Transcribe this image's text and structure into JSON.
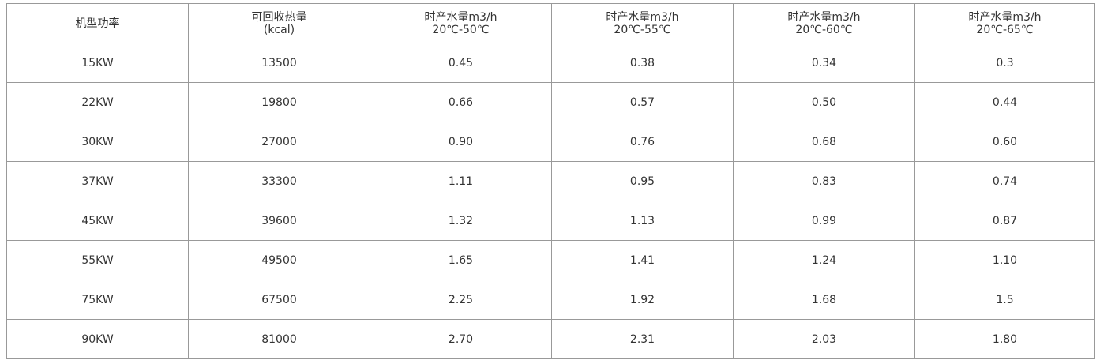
{
  "table": {
    "headers": [
      {
        "line1": "机型功率",
        "line2": ""
      },
      {
        "line1": "可回收热量",
        "line2": "(kcal)"
      },
      {
        "line1": "时产水量m3/h",
        "line2": "20℃-50℃"
      },
      {
        "line1": "时产水量m3/h",
        "line2": "20℃-55℃"
      },
      {
        "line1": "时产水量m3/h",
        "line2": "20℃-60℃"
      },
      {
        "line1": "时产水量m3/h",
        "line2": "20℃-65℃"
      }
    ],
    "rows": [
      [
        "15KW",
        "13500",
        "0.45",
        "0.38",
        "0.34",
        "0.3"
      ],
      [
        "22KW",
        "19800",
        "0.66",
        "0.57",
        "0.50",
        "0.44"
      ],
      [
        "30KW",
        "27000",
        "0.90",
        "0.76",
        "0.68",
        "0.60"
      ],
      [
        "37KW",
        "33300",
        "1.11",
        "0.95",
        "0.83",
        "0.74"
      ],
      [
        "45KW",
        "39600",
        "1.32",
        "1.13",
        "0.99",
        "0.87"
      ],
      [
        "55KW",
        "49500",
        "1.65",
        "1.41",
        "1.24",
        "1.10"
      ],
      [
        "75KW",
        "67500",
        "2.25",
        "1.92",
        "1.68",
        "1.5"
      ],
      [
        "90KW",
        "81000",
        "2.70",
        "2.31",
        "2.03",
        "1.80"
      ]
    ]
  }
}
